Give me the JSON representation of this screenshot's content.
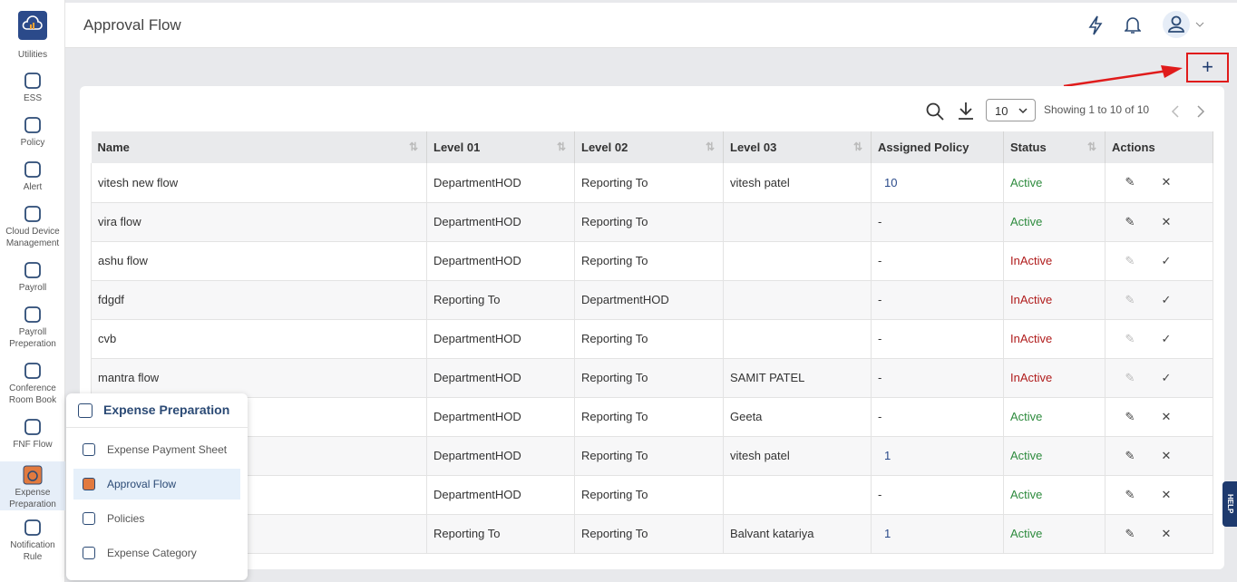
{
  "header": {
    "title": "Approval Flow"
  },
  "sidebar": {
    "items": [
      {
        "label": "Utilities",
        "icon": "cloud-chart-icon"
      },
      {
        "label": "ESS",
        "icon": "users-icon"
      },
      {
        "label": "Policy",
        "icon": "checklist-icon"
      },
      {
        "label": "Alert",
        "icon": "warning-icon"
      },
      {
        "label": "Cloud Device Management",
        "icon": "device-icon"
      },
      {
        "label": "Payroll",
        "icon": "dollar-icon"
      },
      {
        "label": "Payroll Preperation",
        "icon": "hand-dollar-icon"
      },
      {
        "label": "Conference Room Book",
        "icon": "conference-icon"
      },
      {
        "label": "FNF Flow",
        "icon": "flow-icon"
      },
      {
        "label": "Expense Preparation",
        "icon": "expense-icon"
      },
      {
        "label": "Notification Rule",
        "icon": "bell-alert-icon"
      }
    ]
  },
  "toolbar": {
    "page_size": "10",
    "showing": "Showing 1 to 10 of 10",
    "add": "+"
  },
  "table": {
    "columns": [
      "Name",
      "Level 01",
      "Level 02",
      "Level 03",
      "Assigned Policy",
      "Status",
      "Actions"
    ],
    "rows": [
      [
        "vitesh new flow",
        "DepartmentHOD",
        "Reporting To",
        "vitesh patel",
        "10",
        "Active"
      ],
      [
        "vira flow",
        "DepartmentHOD",
        "Reporting To",
        "",
        "-",
        "Active"
      ],
      [
        "ashu flow",
        "DepartmentHOD",
        "Reporting To",
        "",
        "-",
        "InActive"
      ],
      [
        "fdgdf",
        "Reporting To",
        "DepartmentHOD",
        "",
        "-",
        "InActive"
      ],
      [
        "cvb",
        "DepartmentHOD",
        "Reporting To",
        "",
        "-",
        "InActive"
      ],
      [
        "mantra flow",
        "DepartmentHOD",
        "Reporting To",
        "SAMIT PATEL",
        "-",
        "InActive"
      ],
      [
        "",
        "DepartmentHOD",
        "Reporting To",
        "Geeta",
        "-",
        "Active"
      ],
      [
        "",
        "DepartmentHOD",
        "Reporting To",
        "vitesh patel",
        "1",
        "Active"
      ],
      [
        "",
        "DepartmentHOD",
        "Reporting To",
        "",
        "-",
        "Active"
      ],
      [
        "",
        "Reporting To",
        "Reporting To",
        "Balvant katariya",
        "1",
        "Active"
      ]
    ]
  },
  "popup": {
    "title": "Expense Preparation",
    "items": [
      "Expense Payment Sheet",
      "Approval Flow",
      "Policies",
      "Expense Category"
    ],
    "selected": "Approval Flow"
  },
  "help": "HELP",
  "colors": {
    "active": "#2e8b3e",
    "inactive": "#b01c1c",
    "brand": "#1e3a6e",
    "highlight": "#e01b1b"
  }
}
